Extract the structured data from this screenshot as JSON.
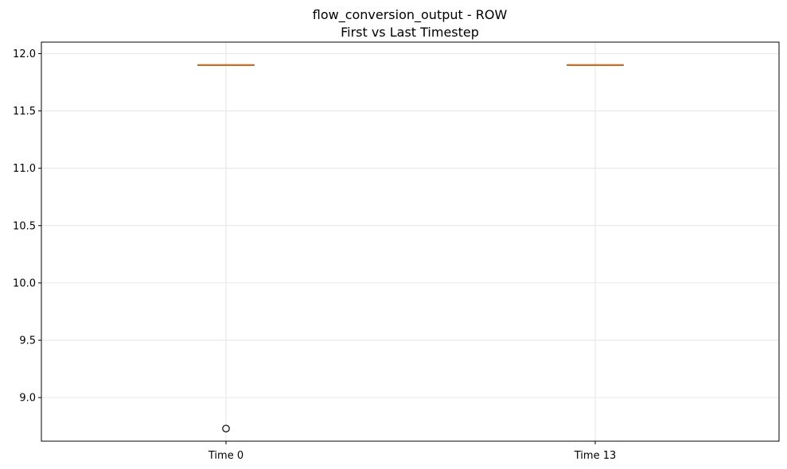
{
  "chart_data": {
    "type": "box",
    "title": "flow_conversion_output - ROW",
    "subtitle": "First vs Last Timestep",
    "xlabel": "",
    "ylabel": "",
    "categories": [
      "Time 0",
      "Time 13"
    ],
    "boxes": [
      {
        "label": "Time 0",
        "whisker_low": 11.9,
        "q1": 11.9,
        "median": 11.9,
        "q3": 11.9,
        "whisker_high": 11.9,
        "outliers": [
          8.73
        ]
      },
      {
        "label": "Time 13",
        "whisker_low": 11.9,
        "q1": 11.9,
        "median": 11.9,
        "q3": 11.9,
        "whisker_high": 11.9,
        "outliers": []
      }
    ],
    "ylim": [
      8.62,
      12.1
    ],
    "yticks": [
      9.0,
      9.5,
      10.0,
      10.5,
      11.0,
      11.5,
      12.0
    ],
    "ytick_labels": [
      "9.0",
      "9.5",
      "10.0",
      "10.5",
      "11.0",
      "11.5",
      "12.0"
    ],
    "grid": true,
    "colors": {
      "box": "#000000",
      "median": "#ff7f0e",
      "grid": "#e6e6e6",
      "outlier_edge": "#000000"
    }
  }
}
